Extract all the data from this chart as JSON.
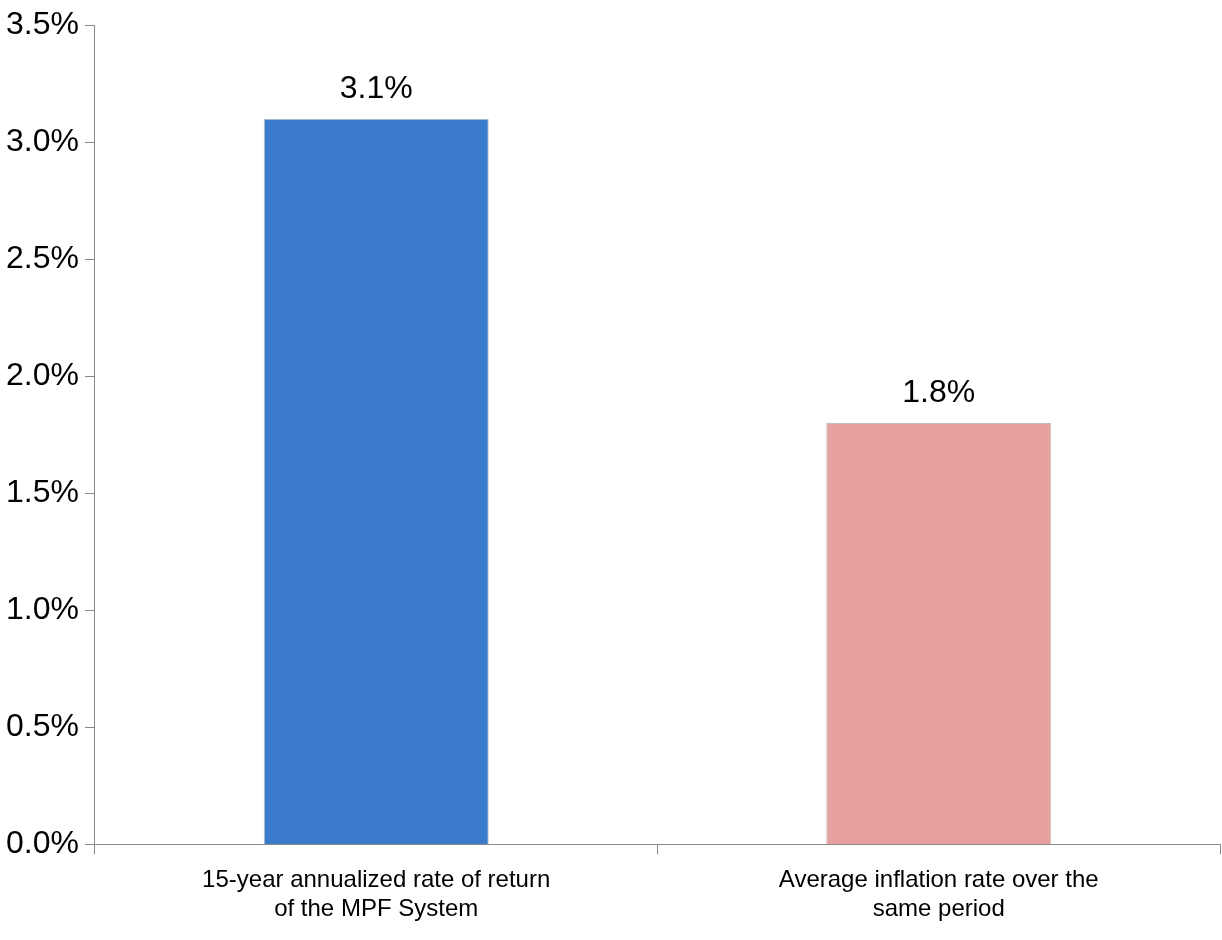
{
  "chart_data": {
    "type": "bar",
    "categories": [
      "15-year annualized rate of return of the MPF System",
      "Average inflation rate over the same period"
    ],
    "values": [
      3.1,
      1.8
    ],
    "colors": [
      "#3b7bcc",
      "#e6a09e"
    ],
    "value_labels": [
      "3.1%",
      "1.8%"
    ],
    "ylim": [
      0,
      3.5
    ],
    "yticks": [
      {
        "value": 0,
        "label": "0.0%"
      },
      {
        "value": 0.5,
        "label": "0.5%"
      },
      {
        "value": 1,
        "label": "1.0%"
      },
      {
        "value": 1.5,
        "label": "1.5%"
      },
      {
        "value": 2,
        "label": "2.0%"
      },
      {
        "value": 2.5,
        "label": "2.5%"
      },
      {
        "value": 3,
        "label": "3.0%"
      },
      {
        "value": 3.5,
        "label": "3.5%"
      }
    ],
    "grid": false,
    "legend": false
  }
}
